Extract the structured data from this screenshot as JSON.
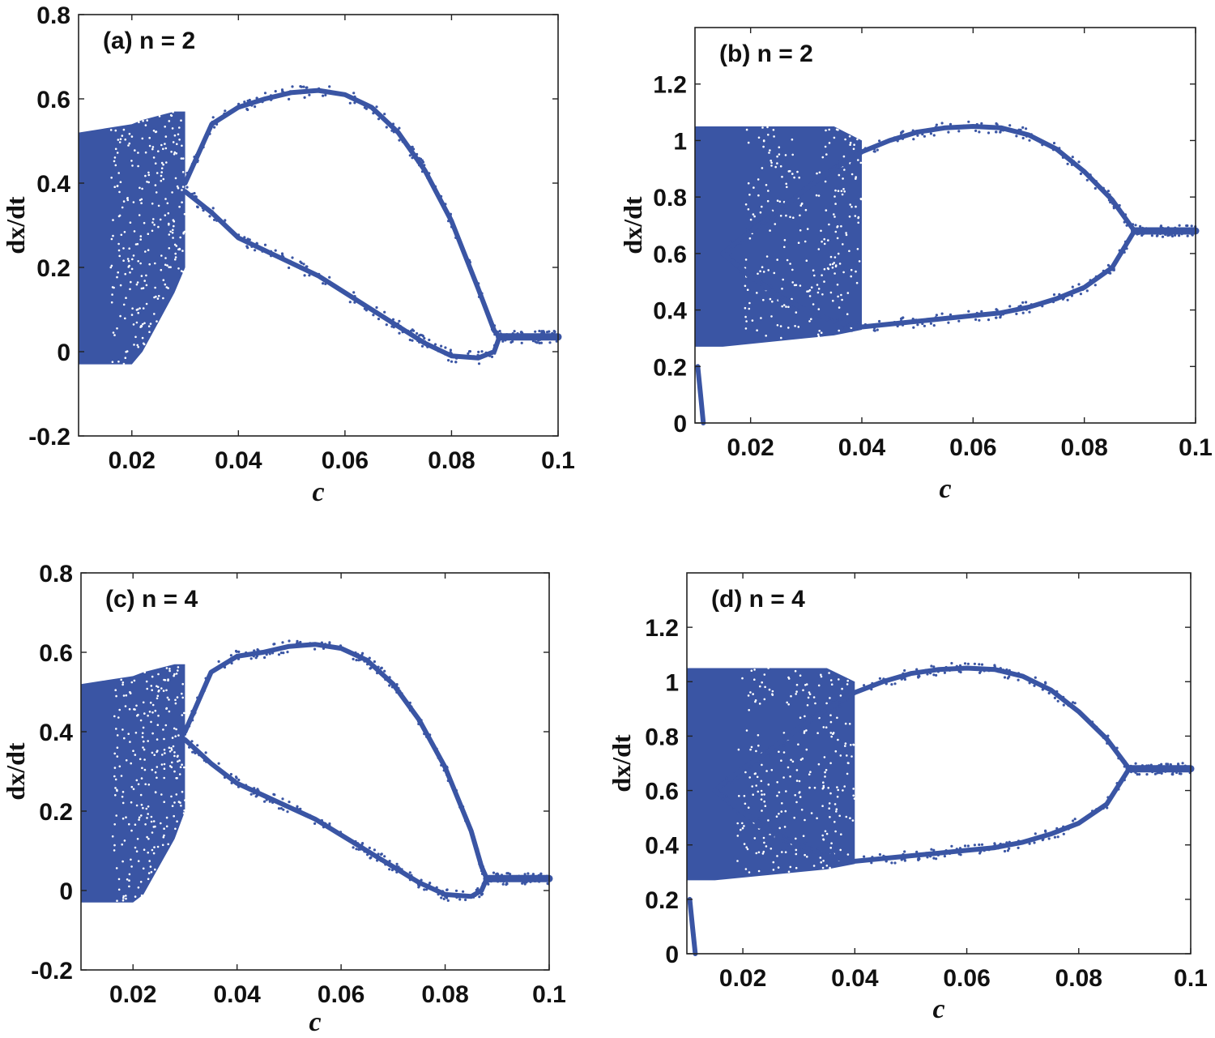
{
  "chart_data": [
    {
      "id": "a",
      "type": "scatter",
      "panel_label": "(a) n = 2",
      "xlabel": "c",
      "ylabel": "dx/dt",
      "xlim": [
        0.01,
        0.1
      ],
      "ylim": [
        -0.2,
        0.8
      ],
      "xticks": [
        0.02,
        0.04,
        0.06,
        0.08,
        0.1
      ],
      "xtick_labels": [
        "0.02",
        "0.04",
        "0.06",
        "0.08",
        "0.1"
      ],
      "yticks": [
        -0.2,
        0,
        0.2,
        0.4,
        0.6,
        0.8
      ],
      "ytick_labels": [
        "-0.2",
        "0",
        "0.2",
        "0.4",
        "0.6",
        "0.8"
      ],
      "color": "#3a55a4",
      "chaotic_band": {
        "x": [
          0.01,
          0.015,
          0.02,
          0.022,
          0.025,
          0.028,
          0.03
        ],
        "top": [
          0.52,
          0.53,
          0.54,
          0.55,
          0.56,
          0.57,
          0.57
        ],
        "bottom": [
          -0.03,
          -0.03,
          -0.03,
          0.0,
          0.07,
          0.14,
          0.2
        ]
      },
      "upper_branch": {
        "x": [
          0.03,
          0.035,
          0.04,
          0.045,
          0.05,
          0.055,
          0.06,
          0.065,
          0.07,
          0.075,
          0.08,
          0.085,
          0.088,
          0.089
        ],
        "y": [
          0.4,
          0.54,
          0.58,
          0.6,
          0.615,
          0.62,
          0.61,
          0.58,
          0.52,
          0.43,
          0.31,
          0.15,
          0.05,
          0.035
        ]
      },
      "lower_branch": {
        "x": [
          0.03,
          0.035,
          0.04,
          0.045,
          0.05,
          0.055,
          0.06,
          0.065,
          0.07,
          0.075,
          0.08,
          0.085,
          0.088,
          0.089
        ],
        "y": [
          0.38,
          0.33,
          0.27,
          0.24,
          0.21,
          0.18,
          0.14,
          0.1,
          0.06,
          0.02,
          -0.01,
          -0.015,
          0.0,
          0.035
        ]
      },
      "fixed_branch": {
        "x": [
          0.089,
          0.1
        ],
        "y": [
          0.035,
          0.035
        ]
      }
    },
    {
      "id": "b",
      "type": "scatter",
      "panel_label": "(b) n = 2",
      "xlabel": "c",
      "ylabel": "dx/dt",
      "xlim": [
        0.01,
        0.1
      ],
      "ylim": [
        0,
        1.4
      ],
      "xticks": [
        0.02,
        0.04,
        0.06,
        0.08,
        0.1
      ],
      "xtick_labels": [
        "0.02",
        "0.04",
        "0.06",
        "0.08",
        "0.1"
      ],
      "yticks": [
        0,
        0.2,
        0.4,
        0.6,
        0.8,
        1,
        1.2
      ],
      "ytick_labels": [
        "0",
        "0.2",
        "0.4",
        "0.6",
        "0.8",
        "1",
        "1.2"
      ],
      "color": "#3a55a4",
      "chaotic_band": {
        "x": [
          0.01,
          0.015,
          0.02,
          0.025,
          0.03,
          0.035,
          0.04
        ],
        "top": [
          1.05,
          1.05,
          1.05,
          1.05,
          1.05,
          1.05,
          1.0
        ],
        "bottom": [
          0.27,
          0.27,
          0.28,
          0.29,
          0.3,
          0.31,
          0.33
        ]
      },
      "upper_branch": {
        "x": [
          0.015,
          0.02,
          0.025,
          0.03,
          0.035,
          0.04,
          0.045,
          0.05,
          0.055,
          0.06,
          0.065,
          0.07,
          0.075,
          0.08,
          0.085,
          0.089
        ],
        "y": [
          0.6,
          0.68,
          0.75,
          0.83,
          0.9,
          0.96,
          1.0,
          1.03,
          1.045,
          1.05,
          1.045,
          1.02,
          0.97,
          0.89,
          0.79,
          0.68
        ]
      },
      "lower_branch": {
        "x": [
          0.015,
          0.02,
          0.025,
          0.03,
          0.035,
          0.04,
          0.045,
          0.05,
          0.055,
          0.06,
          0.065,
          0.07,
          0.075,
          0.08,
          0.085,
          0.089
        ],
        "y": [
          0.6,
          0.52,
          0.45,
          0.4,
          0.36,
          0.34,
          0.35,
          0.36,
          0.37,
          0.38,
          0.39,
          0.41,
          0.44,
          0.48,
          0.55,
          0.68
        ]
      },
      "fixed_branch": {
        "x": [
          0.089,
          0.1
        ],
        "y": [
          0.68,
          0.68
        ]
      },
      "transient": {
        "x": [
          0.0105,
          0.011,
          0.0115
        ],
        "y": [
          0.2,
          0.1,
          0.0
        ]
      }
    },
    {
      "id": "c",
      "type": "scatter",
      "panel_label": "(c) n = 4",
      "xlabel": "c",
      "ylabel": "dx/dt",
      "xlim": [
        0.01,
        0.1
      ],
      "ylim": [
        -0.2,
        0.8
      ],
      "xticks": [
        0.02,
        0.04,
        0.06,
        0.08,
        0.1
      ],
      "xtick_labels": [
        "0.02",
        "0.04",
        "0.06",
        "0.08",
        "0.1"
      ],
      "yticks": [
        -0.2,
        0,
        0.2,
        0.4,
        0.6,
        0.8
      ],
      "ytick_labels": [
        "-0.2",
        "0",
        "0.2",
        "0.4",
        "0.6",
        "0.8"
      ],
      "color": "#3a55a4",
      "chaotic_band": {
        "x": [
          0.01,
          0.015,
          0.02,
          0.022,
          0.025,
          0.028,
          0.03
        ],
        "top": [
          0.52,
          0.53,
          0.54,
          0.55,
          0.56,
          0.57,
          0.57
        ],
        "bottom": [
          -0.03,
          -0.03,
          -0.03,
          -0.01,
          0.06,
          0.13,
          0.2
        ]
      },
      "upper_branch": {
        "x": [
          0.03,
          0.035,
          0.04,
          0.045,
          0.05,
          0.055,
          0.06,
          0.065,
          0.07,
          0.075,
          0.08,
          0.085,
          0.087,
          0.088
        ],
        "y": [
          0.4,
          0.55,
          0.59,
          0.6,
          0.615,
          0.62,
          0.61,
          0.58,
          0.52,
          0.43,
          0.31,
          0.15,
          0.06,
          0.03
        ]
      },
      "lower_branch": {
        "x": [
          0.03,
          0.035,
          0.04,
          0.045,
          0.05,
          0.055,
          0.06,
          0.065,
          0.07,
          0.075,
          0.08,
          0.085,
          0.087,
          0.088
        ],
        "y": [
          0.38,
          0.32,
          0.27,
          0.24,
          0.21,
          0.18,
          0.14,
          0.1,
          0.06,
          0.02,
          -0.01,
          -0.015,
          0.0,
          0.03
        ]
      },
      "fixed_branch": {
        "x": [
          0.088,
          0.1
        ],
        "y": [
          0.03,
          0.03
        ]
      }
    },
    {
      "id": "d",
      "type": "scatter",
      "panel_label": "(d) n = 4",
      "xlabel": "c",
      "ylabel": "dx/dt",
      "xlim": [
        0.01,
        0.1
      ],
      "ylim": [
        0,
        1.4
      ],
      "xticks": [
        0.02,
        0.04,
        0.06,
        0.08,
        0.1
      ],
      "xtick_labels": [
        "0.02",
        "0.04",
        "0.06",
        "0.08",
        "0.1"
      ],
      "yticks": [
        0,
        0.2,
        0.4,
        0.6,
        0.8,
        1,
        1.2
      ],
      "ytick_labels": [
        "0",
        "0.2",
        "0.4",
        "0.6",
        "0.8",
        "1",
        "1.2"
      ],
      "color": "#3a55a4",
      "chaotic_band": {
        "x": [
          0.01,
          0.015,
          0.02,
          0.025,
          0.03,
          0.035,
          0.04
        ],
        "top": [
          1.05,
          1.05,
          1.05,
          1.05,
          1.05,
          1.05,
          1.0
        ],
        "bottom": [
          0.27,
          0.27,
          0.28,
          0.29,
          0.3,
          0.31,
          0.33
        ]
      },
      "upper_branch": {
        "x": [
          0.015,
          0.02,
          0.025,
          0.03,
          0.035,
          0.04,
          0.045,
          0.05,
          0.055,
          0.06,
          0.065,
          0.07,
          0.075,
          0.08,
          0.085,
          0.089
        ],
        "y": [
          0.6,
          0.68,
          0.75,
          0.83,
          0.9,
          0.96,
          1.0,
          1.03,
          1.045,
          1.05,
          1.045,
          1.02,
          0.97,
          0.89,
          0.79,
          0.68
        ]
      },
      "lower_branch": {
        "x": [
          0.015,
          0.02,
          0.025,
          0.03,
          0.035,
          0.04,
          0.045,
          0.05,
          0.055,
          0.06,
          0.065,
          0.07,
          0.075,
          0.08,
          0.085,
          0.089
        ],
        "y": [
          0.6,
          0.52,
          0.45,
          0.4,
          0.36,
          0.34,
          0.35,
          0.36,
          0.37,
          0.38,
          0.39,
          0.41,
          0.44,
          0.48,
          0.55,
          0.68
        ]
      },
      "fixed_branch": {
        "x": [
          0.089,
          0.1
        ],
        "y": [
          0.68,
          0.68
        ]
      },
      "transient": {
        "x": [
          0.0105,
          0.011,
          0.0115
        ],
        "y": [
          0.2,
          0.1,
          0.0
        ]
      }
    }
  ]
}
